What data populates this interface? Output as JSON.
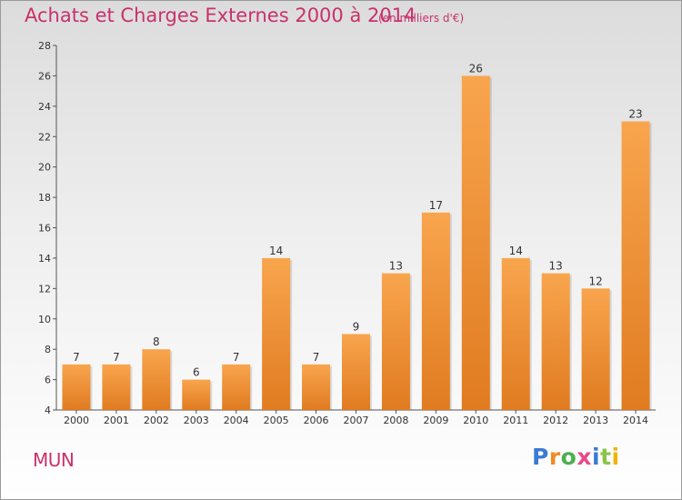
{
  "header": {
    "title": "Achats et Charges Externes 2000 à 2014",
    "subtitle": "(en milliers d'€)"
  },
  "footer": {
    "commune": "MUN",
    "logo": [
      "P",
      "r",
      "o",
      "x",
      "i",
      "t",
      "i"
    ]
  },
  "colors": {
    "accent": "#c8326a",
    "bar_light": "#f8a54e",
    "bar_dark": "#e07b20"
  },
  "chart_data": {
    "type": "bar",
    "categories": [
      "2000",
      "2001",
      "2002",
      "2003",
      "2004",
      "2005",
      "2006",
      "2007",
      "2008",
      "2009",
      "2010",
      "2011",
      "2012",
      "2013",
      "2014"
    ],
    "values": [
      7,
      7,
      8,
      6,
      7,
      14,
      7,
      9,
      13,
      17,
      26,
      14,
      13,
      12,
      23
    ],
    "ylim": [
      4,
      28
    ],
    "yticks": [
      4,
      6,
      8,
      10,
      12,
      14,
      16,
      18,
      20,
      22,
      24,
      26,
      28
    ],
    "grid": false,
    "data_labels": true
  }
}
